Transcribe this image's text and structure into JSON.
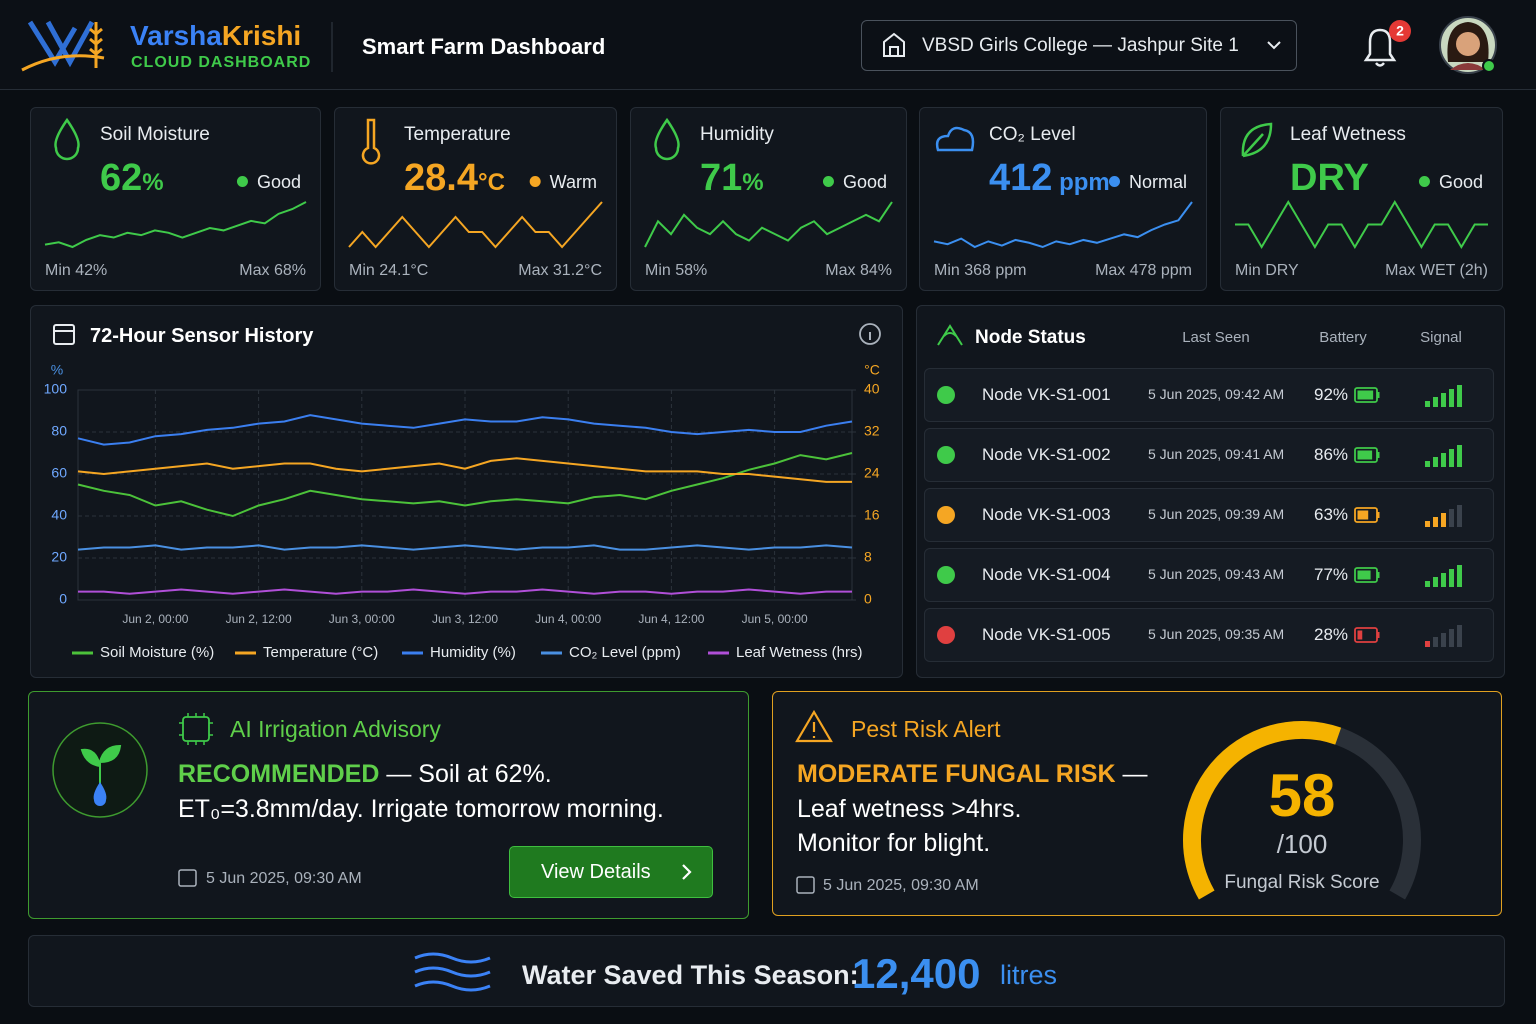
{
  "chart_data": {
    "type": "line",
    "title": "72-Hour Sensor History",
    "y_label": "%",
    "y2_label": "°C",
    "categories": [
      null,
      null,
      null,
      "Jun 2, 00:00",
      null,
      null,
      null,
      "Jun 2, 12:00",
      null,
      null,
      null,
      "Jun 3, 00:00",
      null,
      null,
      null,
      "Jun 3, 12:00",
      null,
      null,
      null,
      "Jun 4, 00:00",
      null,
      null,
      null,
      "Jun 4, 12:00",
      null,
      null,
      null,
      "Jun 5, 00:00",
      null,
      null,
      null
    ],
    "ylim": [
      0,
      100
    ],
    "yticks": [
      0,
      20,
      40,
      60,
      80,
      100
    ],
    "y2lim": [
      0,
      40
    ],
    "y2ticks": [
      0,
      8,
      16,
      24,
      32,
      40
    ],
    "grid": true,
    "series": [
      {
        "name": "Soil Moisture (%)",
        "color": "#4cc23a",
        "values": [
          55,
          52,
          50,
          45,
          47,
          43,
          40,
          45,
          48,
          52,
          50,
          48,
          47,
          46,
          47,
          45,
          47,
          48,
          47,
          46,
          49,
          50,
          48,
          52,
          55,
          58,
          62,
          65,
          69,
          67,
          70
        ]
      },
      {
        "name": "Temperature (°C)",
        "color": "#f5a623",
        "axis": "y2",
        "values": [
          24.5,
          24,
          24.5,
          25,
          25.5,
          26,
          25,
          25.5,
          26,
          26,
          25,
          24.5,
          25,
          25.5,
          26,
          25,
          26.5,
          27,
          26.5,
          26,
          25.5,
          25,
          24.5,
          24.5,
          24.5,
          24,
          24,
          23.5,
          23,
          22.5,
          22.5
        ]
      },
      {
        "name": "Humidity (%)",
        "color": "#3b7ff0",
        "values": [
          77,
          74,
          75,
          78,
          79,
          81,
          82,
          84,
          85,
          88,
          86,
          84,
          83,
          82,
          84,
          86,
          85,
          85,
          87,
          86,
          84,
          83,
          82,
          80,
          79,
          80,
          81,
          80,
          80,
          83,
          85
        ]
      },
      {
        "name": "CO₂ Level (ppm)",
        "color": "#4a90e2",
        "values": [
          24,
          25,
          25,
          26,
          24,
          25,
          25,
          26,
          24,
          25,
          25,
          26,
          25,
          24,
          25,
          26,
          25,
          24,
          25,
          25,
          26,
          24,
          24,
          25,
          26,
          25,
          24,
          25,
          25,
          26,
          25
        ]
      },
      {
        "name": "Leaf Wetness (hrs)",
        "color": "#b04fd8",
        "values": [
          4,
          4,
          3,
          4,
          5,
          4,
          3,
          4,
          5,
          4,
          3,
          4,
          4,
          5,
          4,
          3,
          4,
          4,
          5,
          4,
          3,
          4,
          4,
          3,
          4,
          4,
          5,
          4,
          3,
          4,
          4
        ]
      }
    ]
  },
  "header": {
    "brand_a": "Varsha",
    "brand_b": "Krishi",
    "brand_sub": "CLOUD DASHBOARD",
    "title": "Smart Farm Dashboard",
    "site": "VBSD Girls College — Jashpur Site 1",
    "notifications": "2"
  },
  "metrics": [
    {
      "label": "Soil Moisture",
      "value": "62",
      "unit": "%",
      "status": "Good",
      "color": "#3fca4a",
      "status_color": "#3fca4a",
      "min": "Min 42%",
      "max": "Max 68%",
      "spark": [
        45,
        46,
        44,
        47,
        49,
        48,
        50,
        49,
        51,
        50,
        48,
        50,
        52,
        51,
        53,
        55,
        54,
        58,
        60,
        63
      ]
    },
    {
      "label": "Temperature",
      "value": "28.4",
      "unit": "°C",
      "status": "Warm",
      "color": "#f5a623",
      "status_color": "#f5a623",
      "min": "Min 24.1°C",
      "max": "Max 31.2°C",
      "spark": [
        26,
        27,
        26,
        27,
        28,
        27,
        26,
        27,
        28,
        27,
        27,
        26,
        27,
        28,
        27,
        27,
        26,
        27,
        28,
        29
      ]
    },
    {
      "label": "Humidity",
      "value": "71",
      "unit": "%",
      "status": "Good",
      "color": "#3fca4a",
      "status_color": "#3fca4a",
      "min": "Min 58%",
      "max": "Max 84%",
      "spark": [
        60,
        64,
        62,
        65,
        63,
        62,
        64,
        62,
        61,
        63,
        62,
        61,
        63,
        64,
        62,
        63,
        64,
        65,
        64,
        67
      ]
    },
    {
      "label": "CO₂ Level",
      "value": "412",
      "unit": " ppm",
      "status": "Normal",
      "color": "#3b8ff0",
      "status_color": "#3b8ff0",
      "min": "Min 368 ppm",
      "max": "Max 478 ppm",
      "spark": [
        400,
        398,
        402,
        396,
        400,
        397,
        401,
        399,
        396,
        400,
        398,
        401,
        399,
        402,
        405,
        403,
        408,
        412,
        415,
        428
      ]
    },
    {
      "label": "Leaf Wetness",
      "value": "DRY",
      "unit": "",
      "status": "Good",
      "color": "#3fca4a",
      "status_color": "#3fca4a",
      "min": "Min DRY",
      "max": "Max WET (2h)",
      "spark": [
        5,
        5,
        4,
        5,
        6,
        5,
        4,
        5,
        5,
        4,
        5,
        5,
        6,
        5,
        4,
        5,
        5,
        4,
        5,
        5
      ]
    }
  ],
  "node_status": {
    "title": "Node Status",
    "columns": [
      "Last Seen",
      "Battery",
      "Signal"
    ],
    "rows": [
      {
        "name": "Node VK-S1-001",
        "last_seen": "5 Jun 2025, 09:42 AM",
        "battery": {
          "value": 92,
          "label": "92%"
        },
        "signal": 5,
        "color": "#3fca4a"
      },
      {
        "name": "Node VK-S1-002",
        "last_seen": "5 Jun 2025, 09:41 AM",
        "battery": {
          "value": 86,
          "label": "86%"
        },
        "signal": 5,
        "color": "#3fca4a"
      },
      {
        "name": "Node VK-S1-003",
        "last_seen": "5 Jun 2025, 09:39 AM",
        "battery": {
          "value": 63,
          "label": "63%"
        },
        "signal": 3,
        "color": "#f5a623"
      },
      {
        "name": "Node VK-S1-004",
        "last_seen": "5 Jun 2025, 09:43 AM",
        "battery": {
          "value": 77,
          "label": "77%"
        },
        "signal": 5,
        "color": "#3fca4a"
      },
      {
        "name": "Node VK-S1-005",
        "last_seen": "5 Jun 2025, 09:35 AM",
        "battery": {
          "value": 28,
          "label": "28%"
        },
        "signal": 1,
        "color": "#e04040"
      }
    ]
  },
  "advisory": {
    "title": "AI Irrigation Advisory",
    "headline": "RECOMMENDED",
    "headline_rest": " — Soil at 62%.",
    "line2": "ET₀=3.8mm/day. Irrigate tomorrow morning.",
    "time": "5 Jun 2025, 09:30 AM",
    "button": "View Details"
  },
  "pest": {
    "title": "Pest Risk Alert",
    "headline": "MODERATE FUNGAL RISK",
    "headline_rest": " —",
    "line2": "Leaf wetness >4hrs.",
    "line3": "Monitor for blight.",
    "time": "5 Jun 2025, 09:30 AM",
    "score": 58,
    "max": 100,
    "max_label": "/100",
    "score_label": "Fungal Risk Score"
  },
  "water": {
    "label": "Water Saved This Season:",
    "value": "12,400",
    "unit": "litres"
  }
}
